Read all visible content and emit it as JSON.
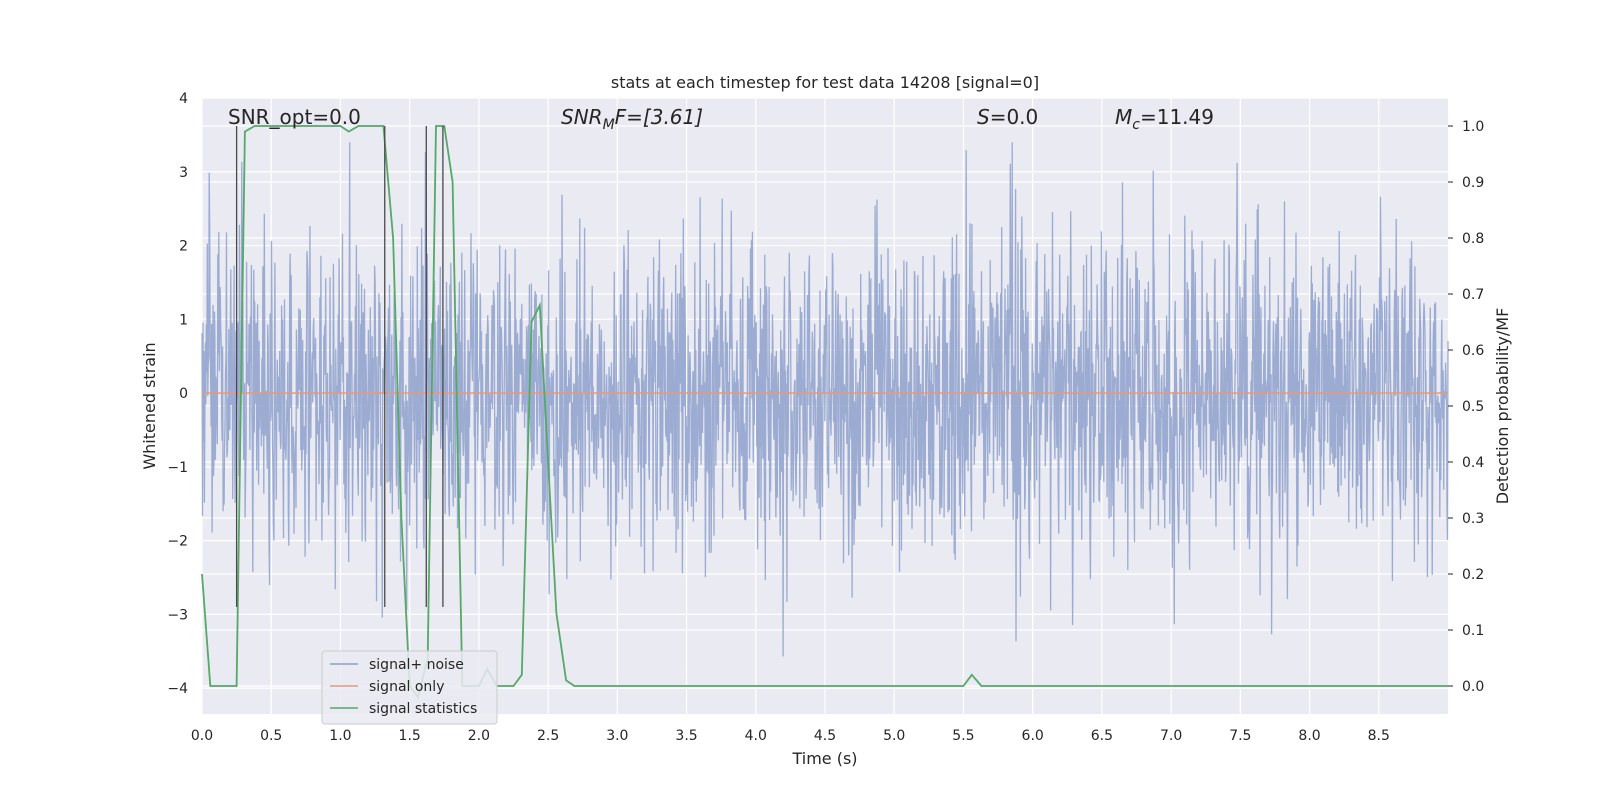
{
  "chart_data": {
    "type": "line",
    "title": "stats at each timestep for test data 14208 [signal=0]",
    "xlabel": "Time (s)",
    "ylabel": "Whitened strain",
    "y2label": "Detection probability/MF",
    "xlim": [
      0,
      9.0
    ],
    "ylim": [
      -4.35,
      4.0
    ],
    "y2lim": [
      -0.05,
      1.05
    ],
    "x_ticks": [
      0.0,
      0.5,
      1.0,
      1.5,
      2.0,
      2.5,
      3.0,
      3.5,
      4.0,
      4.5,
      5.0,
      5.5,
      6.0,
      6.5,
      7.0,
      7.5,
      8.0,
      8.5
    ],
    "x_tick_labels": [
      "0.0",
      "0.5",
      "1.0",
      "1.5",
      "2.0",
      "2.5",
      "3.0",
      "3.5",
      "4.0",
      "4.5",
      "5.0",
      "5.5",
      "6.0",
      "6.5",
      "7.0",
      "7.5",
      "8.0",
      "8.5"
    ],
    "y_ticks": [
      4,
      3,
      2,
      1,
      0,
      -1,
      -2,
      -3,
      -4
    ],
    "y_tick_labels": [
      "4",
      "3",
      "2",
      "1",
      "0",
      "−1",
      "−2",
      "−3",
      "−4"
    ],
    "y2_ticks": [
      1.0,
      0.9,
      0.8,
      0.7,
      0.6,
      0.5,
      0.4,
      0.3,
      0.2,
      0.1,
      0.0
    ],
    "y2_tick_labels": [
      "1.0",
      "0.9",
      "0.8",
      "0.7",
      "0.6",
      "0.5",
      "0.4",
      "0.3",
      "0.2",
      "0.1",
      "0.0"
    ],
    "grid": true,
    "legend_position": "lower-left",
    "annotations": {
      "snr_opt": "SNR_opt=0.0",
      "snr_mf_main": "SNR",
      "snr_mf_sub": "M",
      "snr_mf_rest": "F=[3.61]",
      "s_main": "S",
      "s_rest": "=0.0",
      "mc_main": "M",
      "mc_sub": "c",
      "mc_rest": "=11.49"
    },
    "vertical_lines_x": [
      0.25,
      1.32,
      1.62,
      1.74
    ],
    "series": [
      {
        "name": "signal+ noise",
        "axis": "left",
        "color": "#8da0cb",
        "note_duration_s": 9.0,
        "description_values": "white noise, approx. range -3.9 to 3.4"
      },
      {
        "name": "signal only",
        "axis": "left",
        "color": "#e5997a",
        "x": [
          0.0,
          9.0
        ],
        "y": [
          0.0,
          0.0
        ]
      },
      {
        "name": "signal statistics",
        "axis": "right",
        "color": "#55a868",
        "x": [
          0.0,
          0.06,
          0.12,
          0.18,
          0.25,
          0.31,
          0.38,
          0.44,
          0.5,
          0.56,
          0.63,
          0.69,
          0.75,
          0.81,
          0.88,
          0.94,
          1.0,
          1.06,
          1.13,
          1.19,
          1.25,
          1.31,
          1.38,
          1.44,
          1.5,
          1.56,
          1.63,
          1.69,
          1.75,
          1.81,
          1.88,
          1.94,
          2.0,
          2.06,
          2.13,
          2.19,
          2.25,
          2.31,
          2.38,
          2.44,
          2.5,
          2.56,
          2.63,
          2.69,
          2.75,
          3.0,
          3.5,
          4.0,
          4.5,
          5.0,
          5.25,
          5.5,
          5.56,
          5.63,
          5.69,
          6.0,
          6.5,
          7.0,
          7.5,
          8.0,
          8.5,
          9.0
        ],
        "y": [
          0.2,
          0.0,
          0.0,
          0.0,
          0.0,
          0.99,
          1.0,
          1.0,
          1.0,
          1.0,
          1.0,
          1.0,
          1.0,
          1.0,
          1.0,
          1.0,
          1.0,
          0.99,
          1.0,
          1.0,
          1.0,
          1.0,
          0.8,
          0.3,
          0.0,
          -0.02,
          0.05,
          1.0,
          1.0,
          0.9,
          0.0,
          0.0,
          0.0,
          0.03,
          0.0,
          0.0,
          0.0,
          0.02,
          0.65,
          0.68,
          0.4,
          0.13,
          0.01,
          0.0,
          0.0,
          0.0,
          0.0,
          0.0,
          0.0,
          0.0,
          0.0,
          0.0,
          0.02,
          0.0,
          0.0,
          0.0,
          0.0,
          0.0,
          0.0,
          0.0,
          0.0,
          0.0
        ]
      }
    ]
  }
}
